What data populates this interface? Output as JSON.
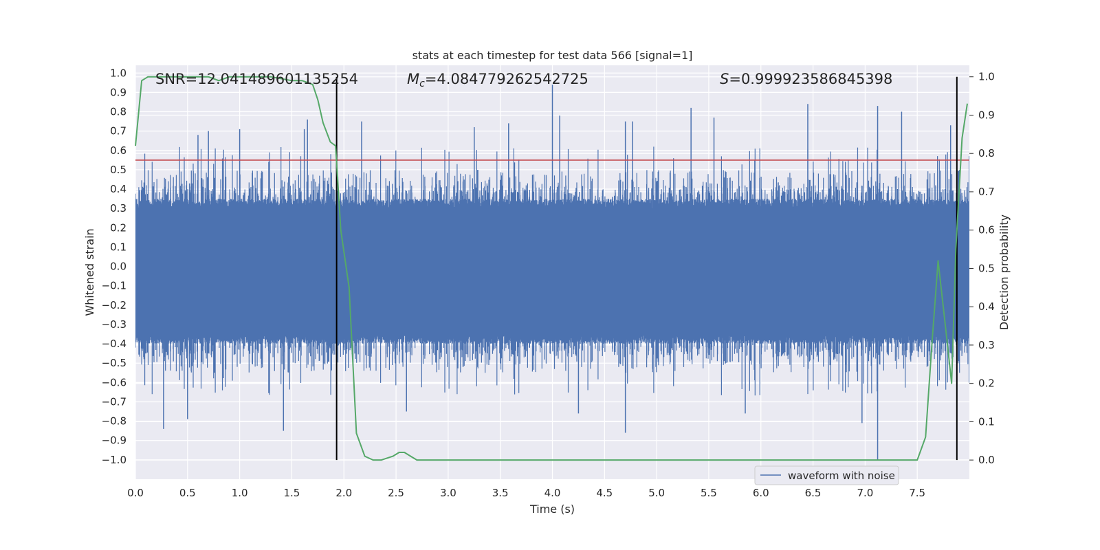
{
  "chart_data": {
    "type": "line",
    "title": "stats at each timestep for test data 566 [signal=1]",
    "annotations": {
      "snr": "SNR=12.041489601135254",
      "mc_symbol": "M",
      "mc_sub": "c",
      "mc_value": "=4.084779262542725",
      "s_symbol": "S",
      "s_value": "=0.999923586845398"
    },
    "xlabel": "Time (s)",
    "ylabel_left": "Whitened strain",
    "ylabel_right": "Detection probability",
    "xlim": [
      0.0,
      8.0
    ],
    "ylim_left": [
      -1.1,
      1.04
    ],
    "ylim_right": [
      -0.05,
      1.03
    ],
    "x_ticks": [
      "0.0",
      "0.5",
      "1.0",
      "1.5",
      "2.0",
      "2.5",
      "3.0",
      "3.5",
      "4.0",
      "4.5",
      "5.0",
      "5.5",
      "6.0",
      "6.5",
      "7.0",
      "7.5"
    ],
    "y_ticks_left": [
      "1.0",
      "0.9",
      "0.8",
      "0.7",
      "0.6",
      "0.5",
      "0.4",
      "0.3",
      "0.2",
      "0.1",
      "0.0",
      "−0.1",
      "−0.2",
      "−0.3",
      "−0.4",
      "−0.5",
      "−0.6",
      "−0.7",
      "−0.8",
      "−0.9",
      "−1.0"
    ],
    "y_ticks_right": [
      "1.0",
      "0.9",
      "0.8",
      "0.7",
      "0.6",
      "0.5",
      "0.4",
      "0.3",
      "0.2",
      "0.1",
      "0.0"
    ],
    "legend": {
      "location": "lower center-right",
      "entries": [
        {
          "label": "waveform with noise",
          "color": "#4c72b0"
        }
      ]
    },
    "grid": true,
    "threshold_line": {
      "axis": "left",
      "y": 0.55,
      "color": "#c44e52"
    },
    "vertical_markers": [
      1.93,
      7.88
    ],
    "waveform": {
      "name": "waveform with noise",
      "color": "#4c72b0",
      "dense_amplitude": 0.35,
      "peaks": [
        [
          0.27,
          -0.84
        ],
        [
          0.5,
          -0.79
        ],
        [
          0.6,
          0.68
        ],
        [
          0.7,
          0.7
        ],
        [
          1.0,
          0.71
        ],
        [
          1.42,
          -0.85
        ],
        [
          1.62,
          0.71
        ],
        [
          1.65,
          0.76
        ],
        [
          2.17,
          0.75
        ],
        [
          2.6,
          -0.75
        ],
        [
          3.25,
          0.72
        ],
        [
          3.58,
          0.74
        ],
        [
          4.0,
          0.94
        ],
        [
          4.07,
          0.78
        ],
        [
          4.25,
          -0.76
        ],
        [
          4.7,
          0.75
        ],
        [
          4.7,
          -0.86
        ],
        [
          4.77,
          0.75
        ],
        [
          5.33,
          0.82
        ],
        [
          5.55,
          0.77
        ],
        [
          5.85,
          -0.76
        ],
        [
          6.45,
          0.84
        ],
        [
          6.97,
          -0.81
        ],
        [
          7.12,
          0.83
        ],
        [
          7.12,
          -1.0
        ],
        [
          7.35,
          0.8
        ],
        [
          7.82,
          0.73
        ]
      ]
    },
    "series": [
      {
        "name": "detection probability",
        "axis": "right",
        "color": "#55a868",
        "x": [
          0.0,
          0.06,
          0.12,
          0.3,
          0.5,
          0.7,
          0.8,
          0.9,
          1.1,
          1.3,
          1.5,
          1.6,
          1.7,
          1.75,
          1.8,
          1.87,
          1.92,
          1.97,
          2.05,
          2.12,
          2.2,
          2.28,
          2.36,
          2.47,
          2.53,
          2.58,
          2.64,
          2.7,
          2.78,
          2.85,
          3.0,
          3.2,
          3.4,
          3.6,
          3.8,
          4.0,
          4.2,
          4.4,
          4.6,
          4.8,
          5.0,
          5.15,
          5.3,
          5.5,
          5.6,
          5.7,
          5.9,
          6.1,
          6.3,
          6.5,
          6.7,
          6.9,
          7.1,
          7.3,
          7.5,
          7.58,
          7.64,
          7.7,
          7.77,
          7.83,
          7.87,
          7.93,
          7.98
        ],
        "values": [
          0.82,
          0.99,
          1.0,
          1.0,
          1.0,
          1.0,
          0.99,
          1.0,
          1.0,
          1.0,
          0.99,
          0.99,
          0.98,
          0.94,
          0.88,
          0.83,
          0.82,
          0.6,
          0.45,
          0.07,
          0.01,
          0.0,
          0.0,
          0.01,
          0.02,
          0.02,
          0.01,
          0.0,
          0.0,
          0.0,
          0.0,
          0.0,
          0.0,
          0.0,
          0.0,
          0.0,
          0.0,
          0.0,
          0.0,
          0.0,
          0.0,
          0.0,
          0.0,
          0.0,
          0.0,
          0.0,
          0.0,
          0.0,
          0.0,
          0.0,
          0.0,
          0.0,
          0.0,
          0.0,
          0.0,
          0.06,
          0.3,
          0.52,
          0.35,
          0.2,
          0.55,
          0.84,
          0.93
        ]
      }
    ]
  }
}
